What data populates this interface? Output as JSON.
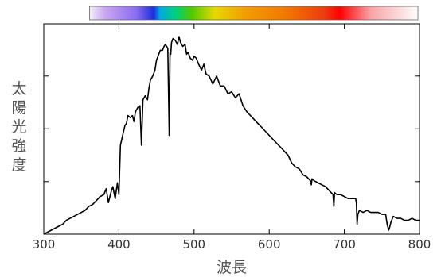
{
  "chart_data": {
    "type": "line",
    "title": "",
    "xlabel": "波長",
    "ylabel": "太陽光強度",
    "ylabel_chars": [
      "太",
      "陽",
      "光",
      "強",
      "度"
    ],
    "xlim": [
      300,
      800
    ],
    "x_ticks": [
      300,
      400,
      500,
      600,
      700,
      800
    ],
    "x_tick_labels": [
      "300",
      "400",
      "500",
      "600",
      "700",
      "800"
    ],
    "ylim": [
      0,
      1
    ],
    "y_ticks": [
      0.266,
      0.533,
      0.8
    ],
    "y_tick_labels": [],
    "grid": false,
    "legend": "none",
    "line_color": "#000000",
    "spectrum_bar": {
      "x_range": [
        380,
        800
      ],
      "stops": [
        {
          "x": 380,
          "color": "#f4eefa"
        },
        {
          "x": 400,
          "color": "#c9a6f0"
        },
        {
          "x": 440,
          "color": "#8a6cf0"
        },
        {
          "x": 462,
          "color": "#1a2fd8"
        },
        {
          "x": 470,
          "color": "#00a9e0"
        },
        {
          "x": 490,
          "color": "#00d07a"
        },
        {
          "x": 510,
          "color": "#4ec800"
        },
        {
          "x": 540,
          "color": "#e6d800"
        },
        {
          "x": 580,
          "color": "#f39c00"
        },
        {
          "x": 630,
          "color": "#f07a00"
        },
        {
          "x": 680,
          "color": "#ee3c10"
        },
        {
          "x": 700,
          "color": "#ff0000"
        },
        {
          "x": 740,
          "color": "#f7a5a8"
        },
        {
          "x": 780,
          "color": "#fbe0e0"
        },
        {
          "x": 800,
          "color": "#ffffff"
        }
      ]
    },
    "series": [
      {
        "x": [
          300,
          305,
          310,
          315,
          320,
          325,
          330,
          335,
          340,
          345,
          350,
          355,
          360,
          365,
          370,
          375,
          380,
          383,
          386,
          390,
          392,
          395,
          398,
          400,
          402,
          405,
          408,
          410,
          412,
          415,
          418,
          420,
          422,
          425,
          428,
          430,
          432,
          435,
          438,
          440,
          442,
          445,
          448,
          450,
          452,
          455,
          458,
          460,
          462,
          465,
          467,
          468,
          469,
          470,
          472,
          475,
          478,
          480,
          482,
          485,
          488,
          490,
          492,
          495,
          498,
          500,
          503,
          506,
          510,
          513,
          516,
          520,
          525,
          530,
          535,
          540,
          545,
          550,
          555,
          560,
          565,
          570,
          575,
          580,
          585,
          590,
          595,
          600,
          605,
          610,
          615,
          620,
          625,
          630,
          635,
          640,
          645,
          650,
          655,
          656,
          657,
          660,
          665,
          670,
          675,
          680,
          685,
          686,
          687,
          690,
          695,
          700,
          705,
          710,
          715,
          716,
          717,
          718,
          719,
          720,
          725,
          730,
          735,
          740,
          745,
          750,
          755,
          757,
          759,
          760,
          762,
          765,
          770,
          775,
          780,
          785,
          790,
          795,
          800
        ],
        "y": [
          0.0,
          0.01,
          0.02,
          0.03,
          0.04,
          0.05,
          0.07,
          0.08,
          0.09,
          0.1,
          0.11,
          0.12,
          0.14,
          0.15,
          0.17,
          0.19,
          0.2,
          0.23,
          0.16,
          0.22,
          0.24,
          0.18,
          0.26,
          0.2,
          0.45,
          0.5,
          0.55,
          0.56,
          0.6,
          0.59,
          0.6,
          0.57,
          0.62,
          0.64,
          0.65,
          0.45,
          0.68,
          0.7,
          0.68,
          0.74,
          0.78,
          0.8,
          0.83,
          0.88,
          0.9,
          0.93,
          0.93,
          0.95,
          0.96,
          0.94,
          0.5,
          0.92,
          0.91,
          0.97,
          0.99,
          0.98,
          0.96,
          1.0,
          0.97,
          0.95,
          0.96,
          0.91,
          0.92,
          0.89,
          0.88,
          0.9,
          0.89,
          0.86,
          0.83,
          0.86,
          0.81,
          0.8,
          0.76,
          0.8,
          0.75,
          0.75,
          0.71,
          0.72,
          0.69,
          0.71,
          0.65,
          0.62,
          0.6,
          0.58,
          0.56,
          0.54,
          0.52,
          0.5,
          0.48,
          0.46,
          0.44,
          0.42,
          0.4,
          0.36,
          0.34,
          0.33,
          0.3,
          0.29,
          0.27,
          0.25,
          0.28,
          0.27,
          0.26,
          0.25,
          0.24,
          0.22,
          0.2,
          0.14,
          0.21,
          0.2,
          0.2,
          0.19,
          0.18,
          0.18,
          0.18,
          0.16,
          0.05,
          0.1,
          0.11,
          0.12,
          0.11,
          0.12,
          0.11,
          0.11,
          0.11,
          0.1,
          0.1,
          0.05,
          0.02,
          0.03,
          0.06,
          0.09,
          0.08,
          0.08,
          0.07,
          0.07,
          0.08,
          0.07,
          0.07
        ]
      }
    ]
  }
}
